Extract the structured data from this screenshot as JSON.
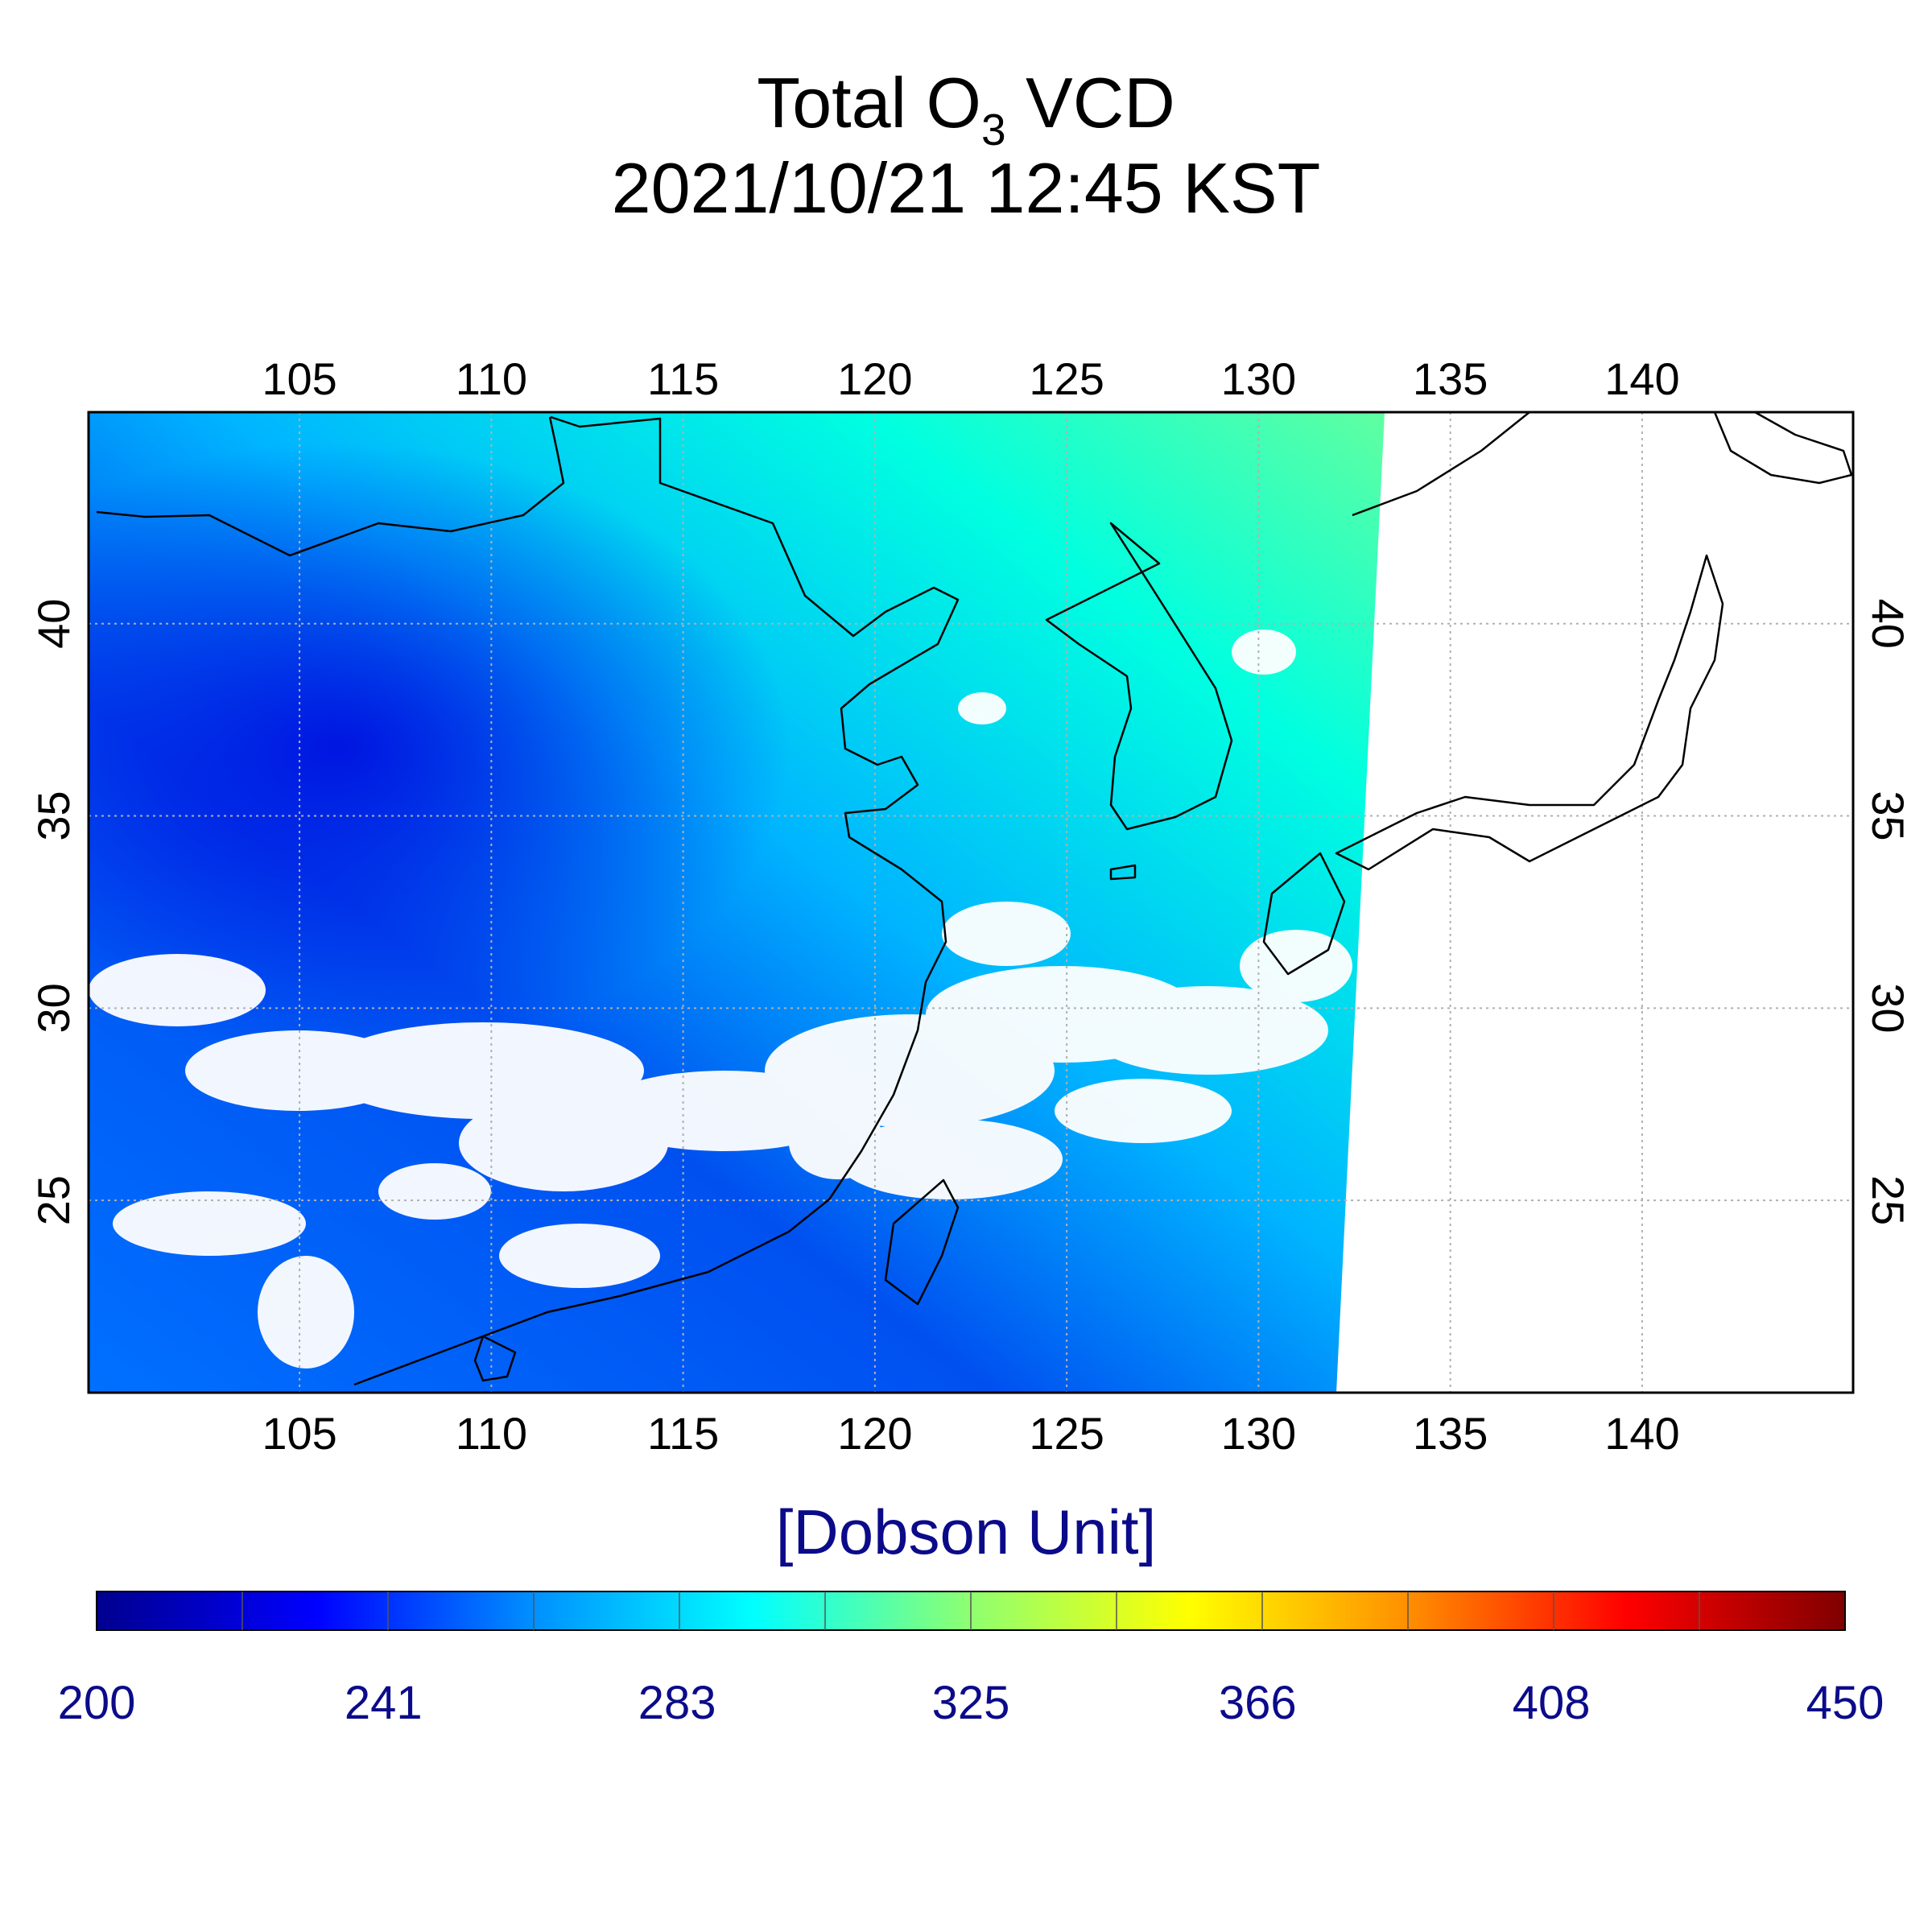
{
  "title": {
    "line1_prefix": "Total O",
    "line1_sub": "3",
    "line1_suffix": " VCD",
    "line2": "2021/10/21 12:45 KST"
  },
  "map": {
    "lon_range": [
      99.5,
      145.5
    ],
    "lat_range": [
      20,
      45.5
    ],
    "lon_ticks": [
      "105",
      "110",
      "115",
      "120",
      "125",
      "130",
      "135",
      "140"
    ],
    "lat_ticks": [
      "40",
      "35",
      "30",
      "25"
    ],
    "colors": {
      "frame": "#000000",
      "grid": "#b0b0b0",
      "no_data": "#ffffff",
      "coast": "#000000"
    }
  },
  "colorbar": {
    "unit_label": "[Dobson Unit]",
    "min": 200,
    "max": 450,
    "ticks": [
      "200",
      "241",
      "283",
      "325",
      "366",
      "408",
      "450"
    ],
    "colors": [
      "#00008f",
      "#0000ff",
      "#0090ff",
      "#00ffff",
      "#8fff70",
      "#ffff00",
      "#ff8f00",
      "#ff0000",
      "#800000"
    ]
  }
}
